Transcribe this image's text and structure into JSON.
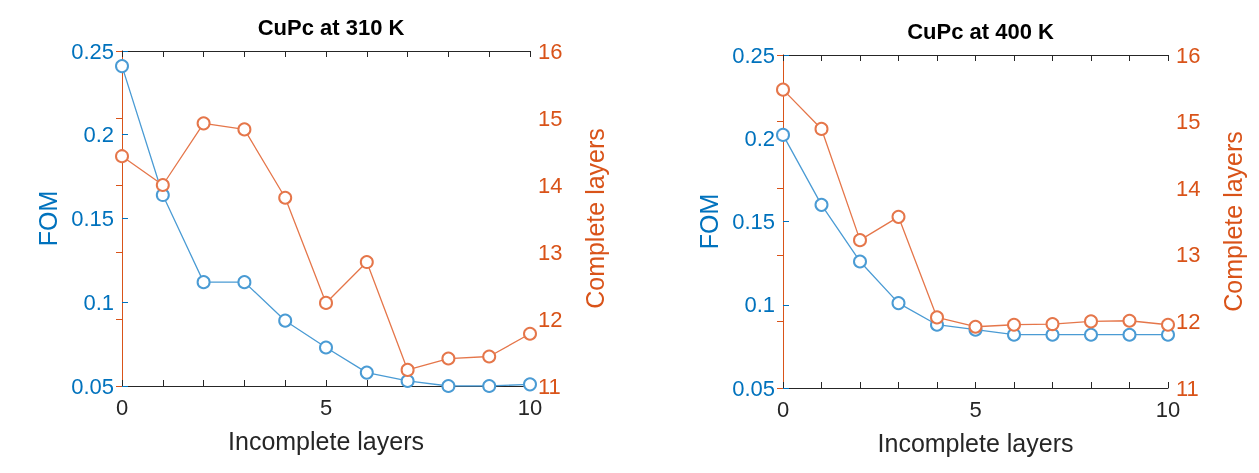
{
  "chart_data": [
    {
      "type": "line",
      "title": "CuPc at 310 K",
      "xlabel": "Incomplete layers",
      "ylabel": "FOM",
      "y2label": "Complete layers",
      "x": [
        0,
        1,
        2,
        3,
        4,
        5,
        6,
        7,
        8,
        9,
        10
      ],
      "marker": "circle",
      "grid": false,
      "xlim": [
        0,
        10
      ],
      "xticks": [
        0,
        {
          "value": 1,
          "label": null
        },
        {
          "value": 2,
          "label": null
        },
        {
          "value": 3,
          "label": null
        },
        {
          "value": 4,
          "label": null
        },
        5,
        {
          "value": 6,
          "label": null
        },
        {
          "value": 7,
          "label": null
        },
        {
          "value": 8,
          "label": null
        },
        {
          "value": 9,
          "label": null
        },
        10
      ],
      "ylim": [
        0.05,
        0.25
      ],
      "yticks": [
        0.05,
        0.1,
        0.15,
        0.2,
        0.25
      ],
      "y2lim": [
        11,
        16
      ],
      "y2ticks": [
        11,
        12,
        13,
        14,
        15,
        16
      ],
      "series": [
        {
          "color": "#4a9bd4",
          "values": [
            0.241,
            0.164,
            0.112,
            0.112,
            0.089,
            0.073,
            0.058,
            0.053,
            0.05,
            0.05,
            0.051
          ]
        },
        {
          "color": "#e5764a",
          "axis": "y2",
          "values": [
            14.43,
            14.0,
            14.92,
            14.83,
            13.81,
            12.24,
            12.85,
            11.24,
            11.41,
            11.44,
            11.78
          ]
        }
      ]
    },
    {
      "type": "line",
      "title": "CuPc at 400 K",
      "xlabel": "Incomplete layers",
      "ylabel": "FOM",
      "y2label": "Complete layers",
      "x": [
        0,
        1,
        2,
        3,
        4,
        5,
        6,
        7,
        8,
        9,
        10
      ],
      "marker": "circle",
      "grid": false,
      "xlim": [
        0,
        10
      ],
      "xticks": [
        0,
        {
          "value": 1,
          "label": null
        },
        {
          "value": 2,
          "label": null
        },
        {
          "value": 3,
          "label": null
        },
        {
          "value": 4,
          "label": null
        },
        5,
        {
          "value": 6,
          "label": null
        },
        {
          "value": 7,
          "label": null
        },
        {
          "value": 8,
          "label": null
        },
        {
          "value": 9,
          "label": null
        },
        10
      ],
      "ylim": [
        0.05,
        0.25
      ],
      "yticks": [
        0.05,
        0.1,
        0.15,
        0.2,
        0.25
      ],
      "y2lim": [
        11,
        16
      ],
      "y2ticks": [
        11,
        12,
        13,
        14,
        15,
        16
      ],
      "series": [
        {
          "color": "#4a9bd4",
          "values": [
            0.202,
            0.16,
            0.126,
            0.101,
            0.088,
            0.085,
            0.082,
            0.082,
            0.082,
            0.082,
            0.082
          ]
        },
        {
          "color": "#e5764a",
          "axis": "y2",
          "values": [
            15.48,
            14.89,
            13.22,
            13.57,
            12.06,
            11.92,
            11.95,
            11.96,
            12.0,
            12.01,
            11.95
          ]
        }
      ]
    }
  ]
}
